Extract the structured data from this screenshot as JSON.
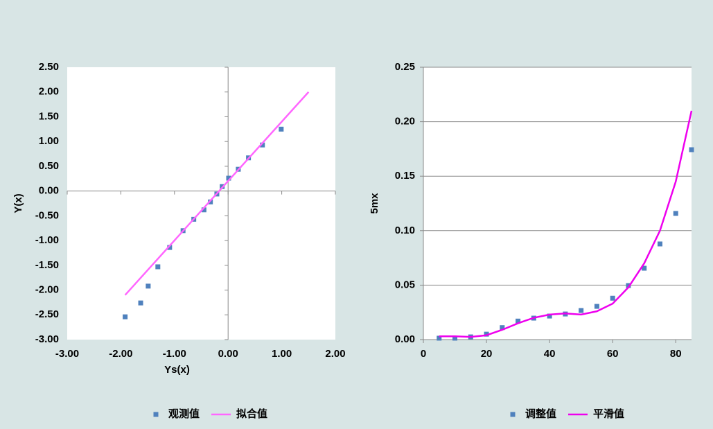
{
  "chart_data": [
    {
      "type": "scatter",
      "xlabel": "Ys(x)",
      "ylabel": "Y(x)",
      "xlim": [
        -3,
        2
      ],
      "ylim": [
        -3,
        2.5
      ],
      "xticks": [
        {
          "value": -3,
          "label": "-3.00"
        },
        {
          "value": -2,
          "label": "-2.00"
        },
        {
          "value": -1,
          "label": "-1.00"
        },
        {
          "value": 0,
          "label": "0.00"
        },
        {
          "value": 1,
          "label": "1.00"
        },
        {
          "value": 2,
          "label": "2.00"
        }
      ],
      "yticks": [
        {
          "value": 2.5,
          "label": "2.50"
        },
        {
          "value": 2,
          "label": "2.00"
        },
        {
          "value": 1.5,
          "label": "1.50"
        },
        {
          "value": 1,
          "label": "1.00"
        },
        {
          "value": 0.5,
          "label": "0.50"
        },
        {
          "value": 0,
          "label": "0.00"
        },
        {
          "value": -0.5,
          "label": "-0.50"
        },
        {
          "value": -1,
          "label": "-1.00"
        },
        {
          "value": -1.5,
          "label": "-1.50"
        },
        {
          "value": -2,
          "label": "-2.00"
        },
        {
          "value": -2.5,
          "label": "-2.50"
        },
        {
          "value": -3,
          "label": "-3.00"
        }
      ],
      "axes_cross_zero": true,
      "grid": false,
      "series": [
        {
          "name": "观测值",
          "mode": "markers",
          "color": "#4f81bd",
          "x": [
            -1.92,
            -1.63,
            -1.49,
            -1.31,
            -1.09,
            -0.84,
            -0.64,
            -0.45,
            -0.33,
            -0.21,
            -0.11,
            0.01,
            0.19,
            0.38,
            0.64,
            0.99
          ],
          "values": [
            -2.54,
            -2.26,
            -1.92,
            -1.53,
            -1.14,
            -0.8,
            -0.57,
            -0.38,
            -0.22,
            -0.06,
            0.09,
            0.26,
            0.44,
            0.67,
            0.93,
            1.25
          ]
        },
        {
          "name": "拟合值",
          "mode": "line",
          "color": "#ff66ff",
          "x": [
            -1.92,
            1.5
          ],
          "values": [
            -2.1,
            2.0
          ]
        }
      ]
    },
    {
      "type": "scatter",
      "ylabel": "5mx",
      "xlim": [
        0,
        85
      ],
      "ylim": [
        0,
        0.25
      ],
      "xticks": [
        0,
        20,
        40,
        60,
        80
      ],
      "yticks": [
        {
          "value": 0,
          "label": "0.00"
        },
        {
          "value": 0.05,
          "label": "0.05"
        },
        {
          "value": 0.1,
          "label": "0.10"
        },
        {
          "value": 0.15,
          "label": "0.15"
        },
        {
          "value": 0.2,
          "label": "0.20"
        },
        {
          "value": 0.25,
          "label": "0.25"
        }
      ],
      "axes_cross_zero": false,
      "grid": true,
      "series": [
        {
          "name": "调整值",
          "mode": "markers",
          "color": "#4f81bd",
          "x": [
            5,
            10,
            15,
            20,
            25,
            30,
            35,
            40,
            45,
            50,
            55,
            60,
            65,
            70,
            75,
            80,
            85
          ],
          "values": [
            0.0013,
            0.0013,
            0.0025,
            0.005,
            0.011,
            0.017,
            0.0197,
            0.0216,
            0.0235,
            0.0267,
            0.0305,
            0.038,
            0.0496,
            0.0655,
            0.0878,
            0.1158,
            0.1743
          ]
        },
        {
          "name": "平滑值",
          "mode": "line",
          "color": "#ee00ee",
          "x": [
            5,
            10,
            15,
            20,
            25,
            30,
            35,
            40,
            45,
            50,
            55,
            60,
            65,
            70,
            75,
            80,
            85
          ],
          "values": [
            0.003,
            0.003,
            0.0025,
            0.004,
            0.009,
            0.015,
            0.02,
            0.023,
            0.024,
            0.023,
            0.026,
            0.033,
            0.048,
            0.07,
            0.1,
            0.145,
            0.21
          ]
        }
      ]
    }
  ]
}
